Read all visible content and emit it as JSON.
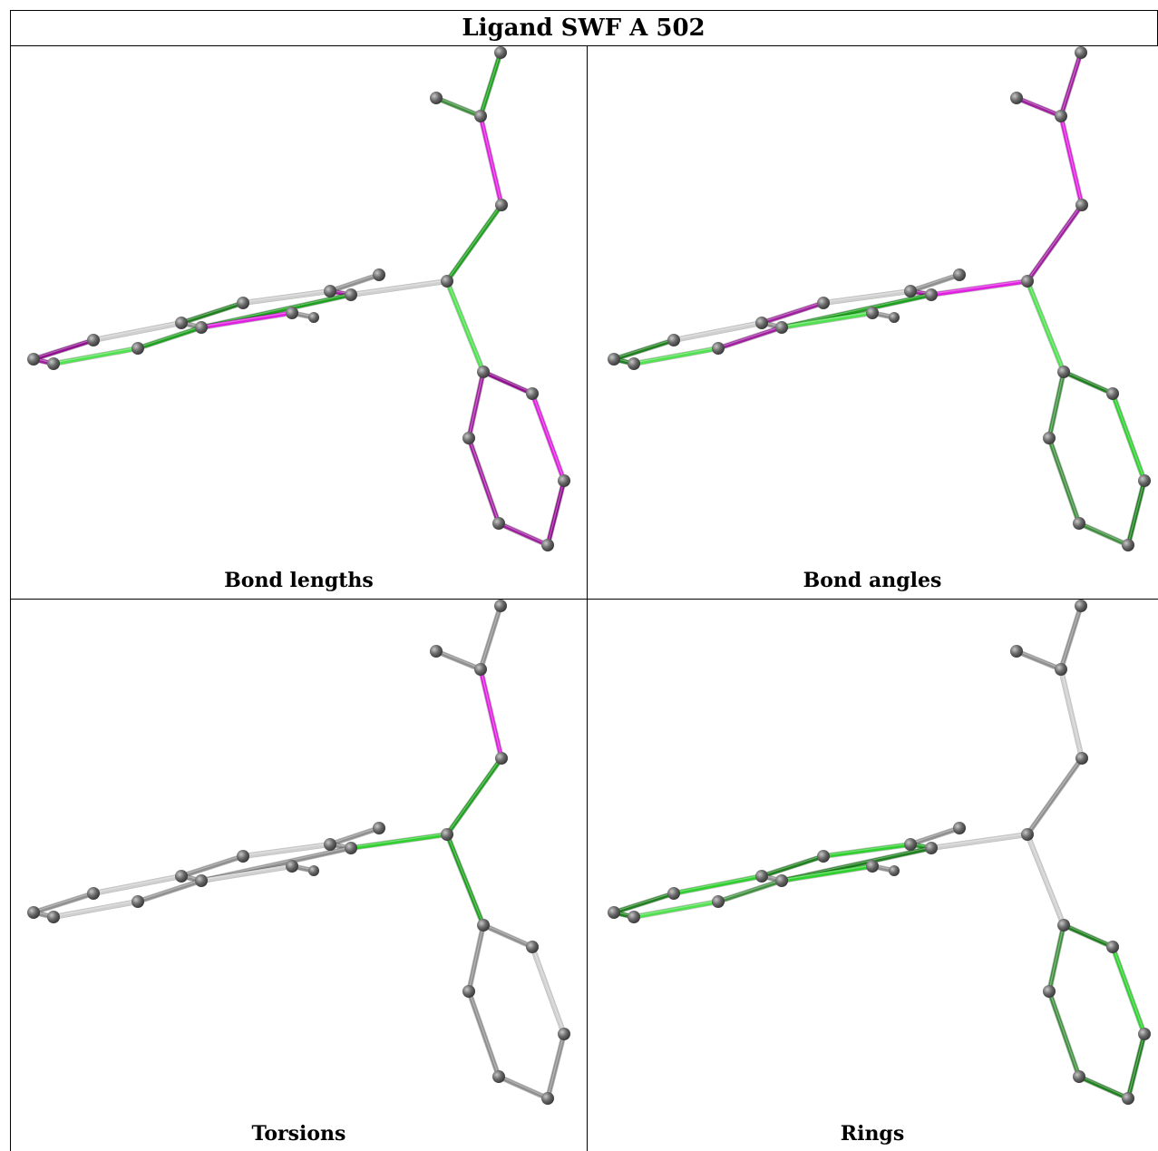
{
  "title": "Ligand SWF A 502",
  "panels": [
    {
      "id": "bond-lengths",
      "caption": "Bond lengths"
    },
    {
      "id": "bond-angles",
      "caption": "Bond angles"
    },
    {
      "id": "torsions",
      "caption": "Torsions"
    },
    {
      "id": "rings",
      "caption": "Rings"
    }
  ],
  "colors": {
    "magenta": "#e020e0",
    "purple": "#a020a0",
    "dark_purple": "#901090",
    "green": "#20a020",
    "light_green": "#50e050",
    "bright_green": "#30d030",
    "dark_green": "#208020",
    "mid_green": "#409040",
    "gray": "#909090",
    "light_gray": "#d0d0d0",
    "atom": "#6a6a6a"
  },
  "molecule": {
    "atoms": [
      {
        "id": "a1",
        "p": [
          552,
          58
        ],
        "r": 7
      },
      {
        "id": "a2",
        "p": [
          481,
          108
        ],
        "r": 7
      },
      {
        "id": "a3",
        "p": [
          530,
          128
        ],
        "r": 7
      },
      {
        "id": "a4",
        "p": [
          553,
          226
        ],
        "r": 7
      },
      {
        "id": "a5",
        "p": [
          493,
          310
        ],
        "r": 7
      },
      {
        "id": "a6",
        "p": [
          418,
          303
        ],
        "r": 7
      },
      {
        "id": "a7",
        "p": [
          387,
          325
        ],
        "r": 7
      },
      {
        "id": "a8",
        "p": [
          364,
          321
        ],
        "r": 7
      },
      {
        "id": "a9",
        "p": [
          322,
          345
        ],
        "r": 7
      },
      {
        "id": "a10",
        "p": [
          346,
          350
        ],
        "r": 6
      },
      {
        "id": "a11",
        "p": [
          268,
          334
        ],
        "r": 7
      },
      {
        "id": "a12",
        "p": [
          200,
          356
        ],
        "r": 7
      },
      {
        "id": "a13",
        "p": [
          222,
          361
        ],
        "r": 7
      },
      {
        "id": "a14",
        "p": [
          103,
          375
        ],
        "r": 7
      },
      {
        "id": "a15",
        "p": [
          152,
          384
        ],
        "r": 7
      },
      {
        "id": "a16",
        "p": [
          37,
          396
        ],
        "r": 7
      },
      {
        "id": "a17",
        "p": [
          59,
          401
        ],
        "r": 7
      },
      {
        "id": "a18",
        "p": [
          533,
          410
        ],
        "r": 7
      },
      {
        "id": "a19",
        "p": [
          587,
          434
        ],
        "r": 7
      },
      {
        "id": "a20",
        "p": [
          517,
          483
        ],
        "r": 7
      },
      {
        "id": "a21",
        "p": [
          622,
          530
        ],
        "r": 7
      },
      {
        "id": "a22",
        "p": [
          550,
          577
        ],
        "r": 7
      },
      {
        "id": "a23",
        "p": [
          604,
          601
        ],
        "r": 7
      }
    ],
    "bonds": [
      {
        "a": "a1",
        "b": "a3",
        "lengths": "green",
        "angles": "purple",
        "torsions": "gray",
        "rings": "gray"
      },
      {
        "a": "a2",
        "b": "a3",
        "lengths": "mid_green",
        "angles": "purple",
        "torsions": "gray",
        "rings": "gray"
      },
      {
        "a": "a3",
        "b": "a4",
        "lengths": "magenta",
        "angles": "magenta",
        "torsions": "magenta",
        "rings": "light_gray"
      },
      {
        "a": "a4",
        "b": "a5",
        "lengths": "green",
        "angles": "purple",
        "torsions": "green",
        "rings": "gray"
      },
      {
        "a": "a5",
        "b": "a7",
        "lengths": "light_gray",
        "angles": "magenta",
        "torsions": "bright_green",
        "rings": "light_gray"
      },
      {
        "a": "a5",
        "b": "a18",
        "lengths": "light_green",
        "angles": "light_green",
        "torsions": "green",
        "rings": "light_gray"
      },
      {
        "a": "a6",
        "b": "a8",
        "lengths": "gray",
        "angles": "gray",
        "torsions": "gray",
        "rings": "gray"
      },
      {
        "a": "a7",
        "b": "a8",
        "lengths": "purple",
        "angles": "purple",
        "torsions": "gray",
        "rings": "green"
      },
      {
        "a": "a8",
        "b": "a11",
        "lengths": "light_gray",
        "angles": "light_gray",
        "torsions": "light_gray",
        "rings": "bright_green"
      },
      {
        "a": "a7",
        "b": "a13",
        "lengths": "green",
        "angles": "green",
        "torsions": "gray",
        "rings": "dark_green"
      },
      {
        "a": "a9",
        "b": "a10",
        "lengths": "gray",
        "angles": "gray",
        "torsions": "gray",
        "rings": "gray"
      },
      {
        "a": "a9",
        "b": "a13",
        "lengths": "magenta",
        "angles": "light_green",
        "torsions": "light_gray",
        "rings": "bright_green"
      },
      {
        "a": "a11",
        "b": "a12",
        "lengths": "dark_green",
        "angles": "purple",
        "torsions": "gray",
        "rings": "dark_green"
      },
      {
        "a": "a12",
        "b": "a13",
        "lengths": "gray",
        "angles": "gray",
        "torsions": "gray",
        "rings": "gray"
      },
      {
        "a": "a12",
        "b": "a14",
        "lengths": "light_gray",
        "angles": "light_gray",
        "torsions": "light_gray",
        "rings": "bright_green"
      },
      {
        "a": "a13",
        "b": "a15",
        "lengths": "green",
        "angles": "purple",
        "torsions": "gray",
        "rings": "mid_green"
      },
      {
        "a": "a14",
        "b": "a16",
        "lengths": "dark_purple",
        "angles": "dark_green",
        "torsions": "gray",
        "rings": "dark_green"
      },
      {
        "a": "a15",
        "b": "a17",
        "lengths": "light_green",
        "angles": "light_green",
        "torsions": "light_gray",
        "rings": "light_green"
      },
      {
        "a": "a16",
        "b": "a17",
        "lengths": "purple",
        "angles": "dark_green",
        "torsions": "gray",
        "rings": "dark_green"
      },
      {
        "a": "a18",
        "b": "a19",
        "lengths": "dark_purple",
        "angles": "dark_green",
        "torsions": "gray",
        "rings": "dark_green"
      },
      {
        "a": "a18",
        "b": "a20",
        "lengths": "purple",
        "angles": "mid_green",
        "torsions": "gray",
        "rings": "mid_green"
      },
      {
        "a": "a19",
        "b": "a21",
        "lengths": "magenta",
        "angles": "bright_green",
        "torsions": "light_gray",
        "rings": "bright_green"
      },
      {
        "a": "a20",
        "b": "a22",
        "lengths": "purple",
        "angles": "mid_green",
        "torsions": "gray",
        "rings": "mid_green"
      },
      {
        "a": "a21",
        "b": "a23",
        "lengths": "dark_purple",
        "angles": "dark_green",
        "torsions": "gray",
        "rings": "dark_green"
      },
      {
        "a": "a22",
        "b": "a23",
        "lengths": "purple",
        "angles": "mid_green",
        "torsions": "gray",
        "rings": "dark_green"
      }
    ]
  }
}
